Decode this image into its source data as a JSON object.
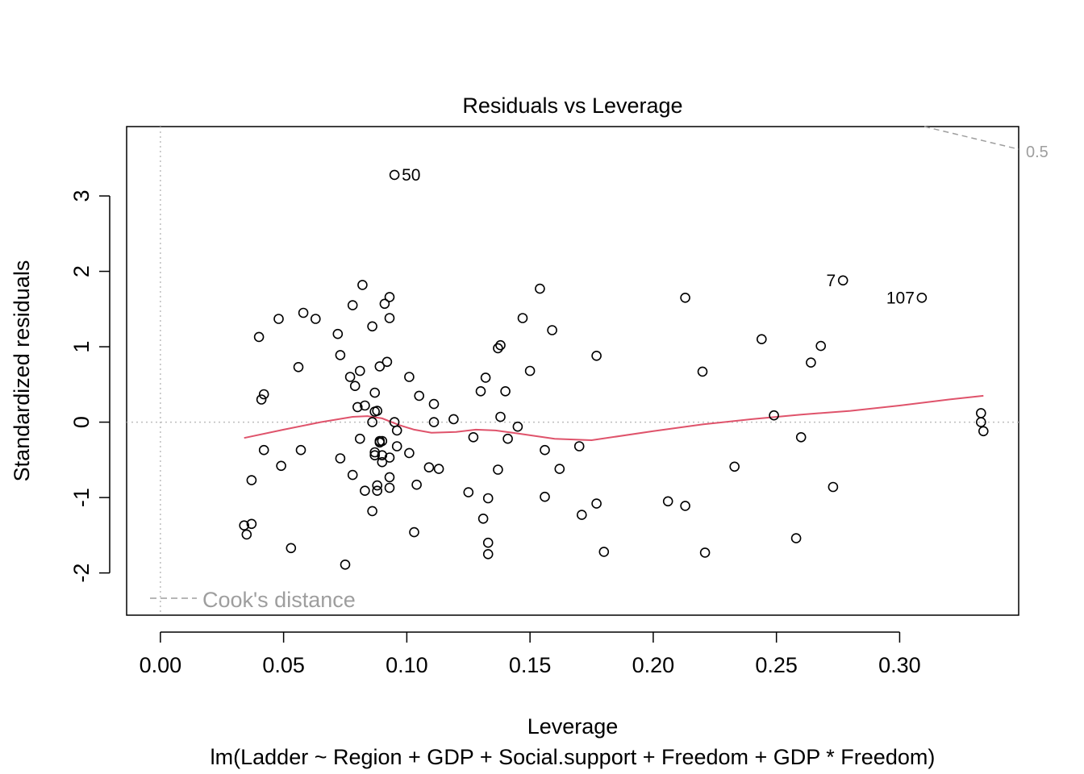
{
  "chart_data": {
    "type": "scatter",
    "title": "Residuals vs Leverage",
    "xlabel": "Leverage",
    "subtitle": "lm(Ladder ~ Region + GDP + Social.support + Freedom + GDP * Freedom)",
    "ylabel": "Standardized residuals",
    "xlim": [
      -0.0137,
      0.3483
    ],
    "ylim": [
      -2.56,
      3.92
    ],
    "x_ticks": [
      "0.00",
      "0.05",
      "0.10",
      "0.15",
      "0.20",
      "0.25",
      "0.30"
    ],
    "x_tick_values": [
      0.0,
      0.05,
      0.1,
      0.15,
      0.2,
      0.25,
      0.3
    ],
    "y_ticks": [
      "-2",
      "-1",
      "0",
      "1",
      "2",
      "3"
    ],
    "y_tick_values": [
      -2,
      -1,
      0,
      1,
      2,
      3
    ],
    "legend": {
      "label": "Cook's distance",
      "placement": "bottom-left",
      "line_style": "dashed"
    },
    "cooks_contour": {
      "label": "0.5",
      "line_style": "dashed",
      "points": [
        [
          0.31,
          3.92
        ],
        [
          0.348,
          3.62
        ]
      ]
    },
    "reference_lines": {
      "h": 0,
      "v": 0,
      "style": "dotted"
    },
    "smooth_color": "#DF536B",
    "point_color": "#000000",
    "cook_color": "#9E9E9E",
    "reference_color": "#BDBDBD",
    "labeled_points": [
      {
        "label": "50",
        "x": 0.095,
        "y": 3.28
      },
      {
        "label": "7",
        "x": 0.277,
        "y": 1.88
      },
      {
        "label": "107",
        "x": 0.309,
        "y": 1.65
      }
    ],
    "points": [
      [
        0.095,
        3.28
      ],
      [
        0.082,
        1.82
      ],
      [
        0.093,
        1.66
      ],
      [
        0.078,
        1.55
      ],
      [
        0.091,
        1.57
      ],
      [
        0.058,
        1.45
      ],
      [
        0.063,
        1.37
      ],
      [
        0.048,
        1.37
      ],
      [
        0.093,
        1.38
      ],
      [
        0.086,
        1.27
      ],
      [
        0.072,
        1.17
      ],
      [
        0.04,
        1.13
      ],
      [
        0.073,
        0.89
      ],
      [
        0.056,
        0.73
      ],
      [
        0.089,
        0.74
      ],
      [
        0.092,
        0.8
      ],
      [
        0.081,
        0.68
      ],
      [
        0.077,
        0.6
      ],
      [
        0.079,
        0.48
      ],
      [
        0.087,
        0.39
      ],
      [
        0.042,
        0.37
      ],
      [
        0.041,
        0.3
      ],
      [
        0.08,
        0.2
      ],
      [
        0.083,
        0.22
      ],
      [
        0.087,
        0.14
      ],
      [
        0.088,
        0.15
      ],
      [
        0.086,
        0.0
      ],
      [
        0.095,
        0.0
      ],
      [
        0.096,
        -0.11
      ],
      [
        0.081,
        -0.22
      ],
      [
        0.089,
        -0.25
      ],
      [
        0.09,
        -0.25
      ],
      [
        0.089,
        -0.27
      ],
      [
        0.096,
        -0.32
      ],
      [
        0.042,
        -0.37
      ],
      [
        0.057,
        -0.37
      ],
      [
        0.087,
        -0.4
      ],
      [
        0.087,
        -0.44
      ],
      [
        0.09,
        -0.44
      ],
      [
        0.093,
        -0.47
      ],
      [
        0.09,
        -0.53
      ],
      [
        0.073,
        -0.48
      ],
      [
        0.049,
        -0.58
      ],
      [
        0.078,
        -0.7
      ],
      [
        0.037,
        -0.77
      ],
      [
        0.093,
        -0.73
      ],
      [
        0.088,
        -0.84
      ],
      [
        0.088,
        -0.91
      ],
      [
        0.083,
        -0.91
      ],
      [
        0.093,
        -0.87
      ],
      [
        0.086,
        -1.18
      ],
      [
        0.034,
        -1.37
      ],
      [
        0.037,
        -1.35
      ],
      [
        0.035,
        -1.49
      ],
      [
        0.053,
        -1.67
      ],
      [
        0.075,
        -1.89
      ],
      [
        0.101,
        0.6
      ],
      [
        0.105,
        0.35
      ],
      [
        0.111,
        0.24
      ],
      [
        0.111,
        0.0
      ],
      [
        0.119,
        0.04
      ],
      [
        0.101,
        -0.41
      ],
      [
        0.109,
        -0.6
      ],
      [
        0.113,
        -0.62
      ],
      [
        0.104,
        -0.83
      ],
      [
        0.103,
        -1.46
      ],
      [
        0.127,
        -0.2
      ],
      [
        0.13,
        0.41
      ],
      [
        0.132,
        0.59
      ],
      [
        0.137,
        0.98
      ],
      [
        0.138,
        1.02
      ],
      [
        0.138,
        0.07
      ],
      [
        0.14,
        0.41
      ],
      [
        0.141,
        -0.22
      ],
      [
        0.145,
        -0.06
      ],
      [
        0.137,
        -0.63
      ],
      [
        0.125,
        -0.93
      ],
      [
        0.133,
        -1.01
      ],
      [
        0.131,
        -1.28
      ],
      [
        0.133,
        -1.6
      ],
      [
        0.133,
        -1.75
      ],
      [
        0.147,
        1.38
      ],
      [
        0.15,
        0.68
      ],
      [
        0.154,
        1.77
      ],
      [
        0.159,
        1.22
      ],
      [
        0.156,
        -0.37
      ],
      [
        0.162,
        -0.62
      ],
      [
        0.156,
        -0.99
      ],
      [
        0.17,
        -0.32
      ],
      [
        0.171,
        -1.23
      ],
      [
        0.177,
        -1.08
      ],
      [
        0.18,
        -1.72
      ],
      [
        0.177,
        0.88
      ],
      [
        0.213,
        1.65
      ],
      [
        0.22,
        0.67
      ],
      [
        0.206,
        -1.05
      ],
      [
        0.213,
        -1.11
      ],
      [
        0.221,
        -1.73
      ],
      [
        0.233,
        -0.59
      ],
      [
        0.244,
        1.1
      ],
      [
        0.249,
        0.09
      ],
      [
        0.258,
        -1.54
      ],
      [
        0.26,
        -0.2
      ],
      [
        0.264,
        0.79
      ],
      [
        0.268,
        1.01
      ],
      [
        0.273,
        -0.86
      ],
      [
        0.277,
        1.88
      ],
      [
        0.309,
        1.65
      ],
      [
        0.333,
        0.12
      ],
      [
        0.333,
        0.0
      ],
      [
        0.334,
        -0.12
      ]
    ],
    "smooth": [
      [
        0.034,
        -0.21
      ],
      [
        0.05,
        -0.1
      ],
      [
        0.065,
        0.0
      ],
      [
        0.078,
        0.07
      ],
      [
        0.084,
        0.08
      ],
      [
        0.09,
        0.05
      ],
      [
        0.097,
        -0.04
      ],
      [
        0.103,
        -0.1
      ],
      [
        0.11,
        -0.14
      ],
      [
        0.12,
        -0.13
      ],
      [
        0.128,
        -0.1
      ],
      [
        0.136,
        -0.11
      ],
      [
        0.145,
        -0.15
      ],
      [
        0.16,
        -0.22
      ],
      [
        0.175,
        -0.24
      ],
      [
        0.2,
        -0.12
      ],
      [
        0.22,
        -0.03
      ],
      [
        0.24,
        0.04
      ],
      [
        0.26,
        0.1
      ],
      [
        0.28,
        0.15
      ],
      [
        0.3,
        0.22
      ],
      [
        0.32,
        0.3
      ],
      [
        0.334,
        0.35
      ]
    ]
  }
}
